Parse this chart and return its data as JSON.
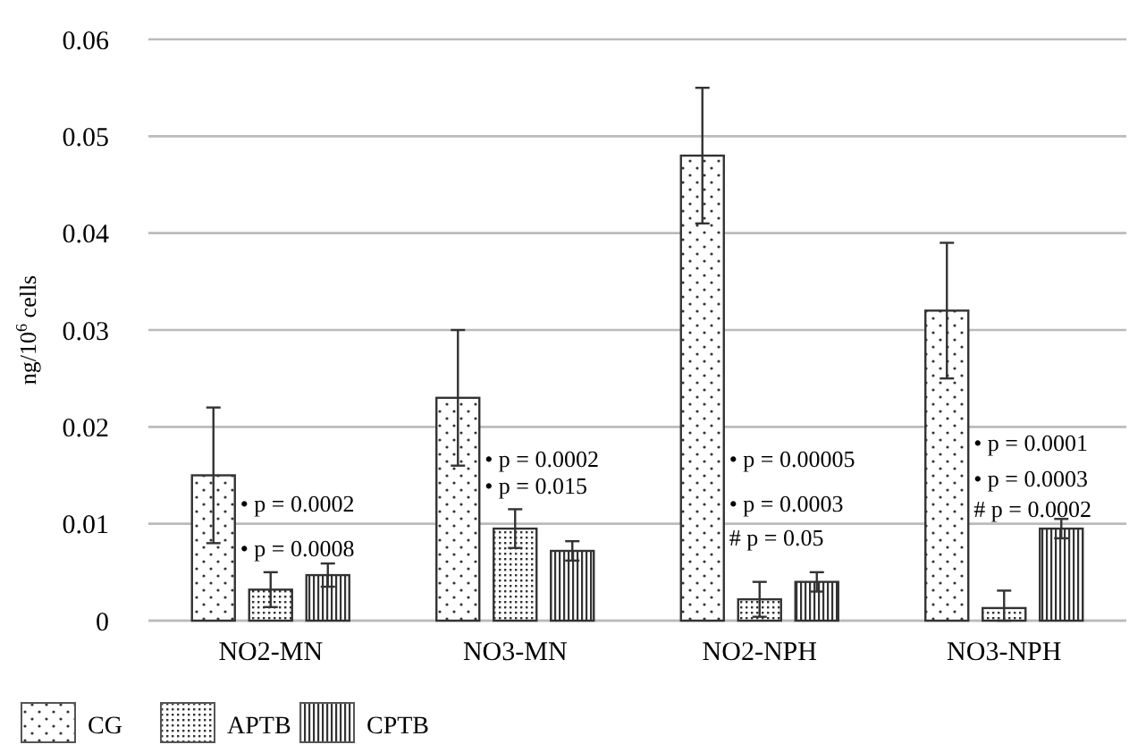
{
  "chart_data": {
    "type": "bar",
    "ylabel": "ng/10$^{6}$ cells",
    "categories": [
      "NO2-MN",
      "NO3-MN",
      "NO2-NPH",
      "NO3-NPH"
    ],
    "series": [
      {
        "name": "CG",
        "color": "#333333",
        "values": [
          0.015,
          0.023,
          0.048,
          0.032
        ],
        "errors": [
          0.007,
          0.007,
          0.007,
          0.007
        ]
      },
      {
        "name": "APTB",
        "color": "#333333",
        "values": [
          0.0032,
          0.0095,
          0.0022,
          0.0013
        ],
        "errors": [
          0.0018,
          0.002,
          0.0018,
          [
            0,
            0.0031
          ]
        ]
      },
      {
        "name": "CPTB",
        "color": "#333333",
        "values": [
          0.0047,
          0.0072,
          0.004,
          0.0095
        ],
        "errors": [
          0.0012,
          0.001,
          0.001,
          0.001
        ]
      }
    ],
    "ylim": [
      0,
      0.06
    ],
    "yticks": [
      0,
      0.01,
      0.02,
      0.03,
      0.04,
      0.05,
      0.06
    ],
    "grid": "y",
    "legend": "bottom left",
    "annotations": [
      "• p = 0.0002",
      "• p = 0.0008",
      "• p = 0.0002",
      "• p = 0.015",
      "• p = 0.00005",
      "• p = 0.0003",
      "# p = 0.05",
      "• p = 0.0001",
      "• p = 0.0003",
      "# p = 0.0002"
    ]
  }
}
